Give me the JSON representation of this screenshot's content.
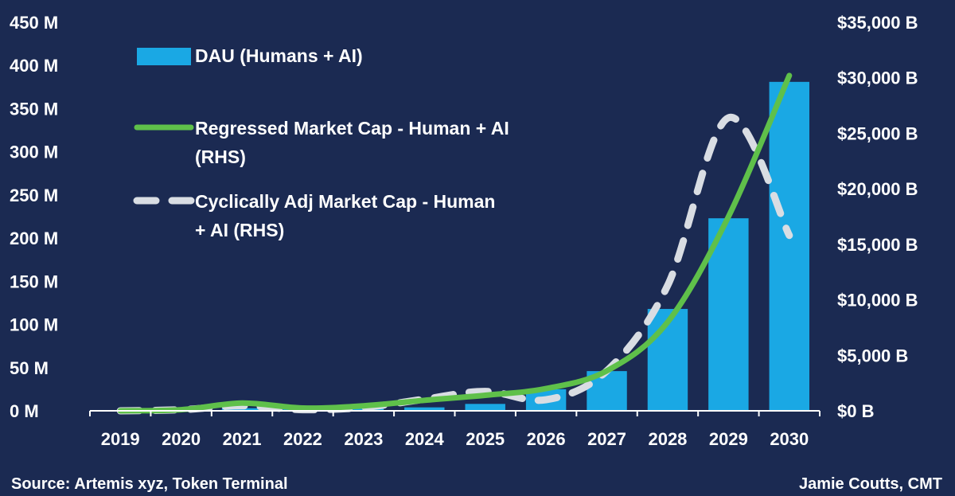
{
  "chart_data": {
    "type": "bar",
    "categories": [
      "2019",
      "2020",
      "2021",
      "2022",
      "2023",
      "2024",
      "2025",
      "2026",
      "2027",
      "2028",
      "2029",
      "2030"
    ],
    "series": [
      {
        "name": "DAU (Humans + AI)",
        "type": "bar",
        "axis": "left",
        "color": "#1aa8e4",
        "values": [
          0.5,
          1,
          3,
          2,
          2.5,
          4,
          8,
          25,
          46,
          118,
          223,
          381
        ]
      },
      {
        "name": "Regressed Market Cap - Human + AI (RHS)",
        "type": "line",
        "axis": "right",
        "color": "#5fc04a",
        "style": "solid",
        "values": [
          0,
          100,
          700,
          250,
          450,
          950,
          1400,
          2000,
          3600,
          8000,
          17500,
          30200
        ]
      },
      {
        "name": "Cyclically Adj Market Cap - Human + AI (RHS)",
        "type": "line",
        "axis": "right",
        "color": "#d9dde3",
        "style": "dashed",
        "values": [
          0,
          100,
          450,
          100,
          300,
          1050,
          1750,
          1000,
          3600,
          11300,
          26400,
          15800
        ]
      }
    ],
    "y_left": {
      "range": [
        0,
        450
      ],
      "ticks": [
        0,
        50,
        100,
        150,
        200,
        250,
        300,
        350,
        400,
        450
      ],
      "tick_labels": [
        "0 M",
        "50 M",
        "100 M",
        "150 M",
        "200 M",
        "250 M",
        "300 M",
        "350 M",
        "400 M",
        "450 M"
      ]
    },
    "y_right": {
      "range": [
        0,
        35000
      ],
      "ticks": [
        0,
        5000,
        10000,
        15000,
        20000,
        25000,
        30000,
        35000
      ],
      "tick_labels": [
        "$0 B",
        "$5,000 B",
        "$10,000 B",
        "$15,000 B",
        "$20,000 B",
        "$25,000 B",
        "$30,000 B",
        "$35,000 B"
      ]
    },
    "legend": {
      "placement": "top-left",
      "lines": [
        [
          "DAU (Humans + AI)"
        ],
        [
          "Regressed Market Cap - Human + AI",
          "(RHS)"
        ],
        [
          "Cyclically Adj Market Cap - Human",
          "+ AI (RHS)"
        ]
      ]
    },
    "grid": false
  },
  "footer": {
    "source": "Source: Artemis xyz, Token Terminal",
    "author": "Jamie Coutts, CMT"
  },
  "colors": {
    "background": "#1b2a52",
    "text": "#ffffff",
    "axis": "#ffffff"
  }
}
